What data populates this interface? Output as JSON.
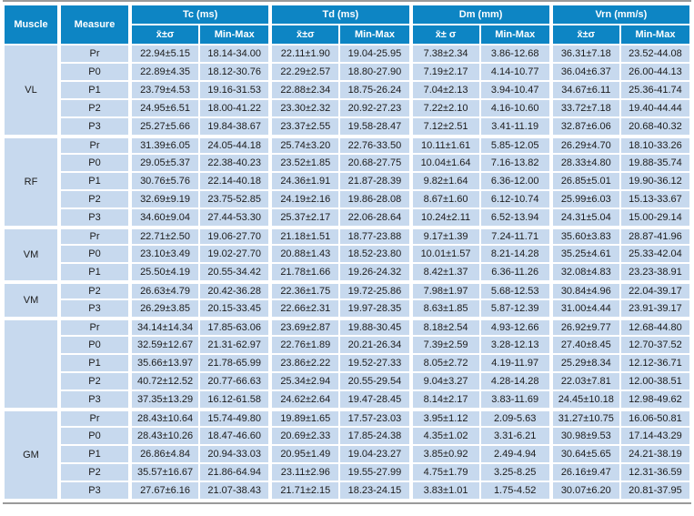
{
  "colors": {
    "header_bg": "#0d85c4",
    "header_text": "#ffffff",
    "cell_bg": "#c7d9ee",
    "cell_text": "#1b1b1b",
    "gutter": "#ffffff",
    "frame_line": "#9a9a9a"
  },
  "table": {
    "header": {
      "muscle": "Muscle",
      "measure": "Measure",
      "param_groups": [
        {
          "label": "Tc (ms)",
          "mean": "x̄±σ",
          "range": "Min-Max"
        },
        {
          "label": "Td (ms)",
          "mean": "x̄±σ",
          "range": "Min-Max"
        },
        {
          "label": "Dm (mm)",
          "mean": "x̄± σ",
          "range": "Min-Max"
        },
        {
          "label": "Vrn (mm/s)",
          "mean": "x̄±σ",
          "range": "Min-Max"
        }
      ]
    },
    "muscle_groups": [
      {
        "muscle": "VL",
        "rows": [
          {
            "measure": "Pr",
            "values": [
              "22.94±5.15",
              "18.14-34.00",
              "22.11±1.90",
              "19.04-25.95",
              "7.38±2.34",
              "3.86-12.68",
              "36.31±7.18",
              "23.52-44.08"
            ]
          },
          {
            "measure": "P0",
            "values": [
              "22.89±4.35",
              "18.12-30.76",
              "22.29±2.57",
              "18.80-27.90",
              "7.19±2.17",
              "4.14-10.77",
              "36.04±6.37",
              "26.00-44.13"
            ]
          },
          {
            "measure": "P1",
            "values": [
              "23.79±4.53",
              "19.16-31.53",
              "22.88±2.34",
              "18.75-26.24",
              "7.04±2.13",
              "3.94-10.47",
              "34.67±6.11",
              "25.36-41.74"
            ]
          },
          {
            "measure": "P2",
            "values": [
              "24.95±6.51",
              "18.00-41.22",
              "23.30±2.32",
              "20.92-27.23",
              "7.22±2.10",
              "4.16-10.60",
              "33.72±7.18",
              "19.40-44.44"
            ]
          },
          {
            "measure": "P3",
            "values": [
              "25.27±5.66",
              "19.84-38.67",
              "23.37±2.55",
              "19.58-28.47",
              "7.12±2.51",
              "3.41-11.19",
              "32.87±6.06",
              "20.68-40.32"
            ]
          }
        ]
      },
      {
        "muscle": "RF",
        "rows": [
          {
            "measure": "Pr",
            "values": [
              "31.39±6.05",
              "24.05-44.18",
              "25.74±3.20",
              "22.76-33.50",
              "10.11±1.61",
              "5.85-12.05",
              "26.29±4.70",
              "18.10-33.26"
            ]
          },
          {
            "measure": "P0",
            "values": [
              "29.05±5.37",
              "22.38-40.23",
              "23.52±1.85",
              "20.68-27.75",
              "10.04±1.64",
              "7.16-13.82",
              "28.33±4.80",
              "19.88-35.74"
            ]
          },
          {
            "measure": "P1",
            "values": [
              "30.76±5.76",
              "22.14-40.18",
              "24.36±1.91",
              "21.87-28.39",
              "9.82±1.64",
              "6.36-12.00",
              "26.85±5.01",
              "19.90-36.12"
            ]
          },
          {
            "measure": "P2",
            "values": [
              "32.69±9.19",
              "23.75-52.85",
              "24.19±2.16",
              "19.86-28.08",
              "8.67±1.60",
              "6.12-10.74",
              "25.99±6.03",
              "15.13-33.67"
            ]
          },
          {
            "measure": "P3",
            "values": [
              "34.60±9.04",
              "27.44-53.30",
              "25.37±2.17",
              "22.06-28.64",
              "10.24±2.11",
              "6.52-13.94",
              "24.31±5.04",
              "15.00-29.14"
            ]
          }
        ]
      },
      {
        "muscle": "VM",
        "rows": [
          {
            "measure": "Pr",
            "values": [
              "22.71±2.50",
              "19.06-27.70",
              "21.18±1.51",
              "18.77-23.88",
              "9.17±1.39",
              "7.24-11.71",
              "35.60±3.83",
              "28.87-41.96"
            ]
          },
          {
            "measure": "P0",
            "values": [
              "23.10±3.49",
              "19.02-27.70",
              "20.88±1.43",
              "18.52-23.80",
              "10.01±1.57",
              "8.21-14.28",
              "35.25±4.61",
              "25.33-42.04"
            ]
          },
          {
            "measure": "P1",
            "values": [
              "25.50±4.19",
              "20.55-34.42",
              "21.78±1.66",
              "19.26-24.32",
              "8.42±1.37",
              "6.36-11.26",
              "32.08±4.83",
              "23.23-38.91"
            ]
          }
        ]
      },
      {
        "muscle": "VM",
        "rows": [
          {
            "measure": "P2",
            "values": [
              "26.63±4.79",
              "20.42-36.28",
              "22.36±1.75",
              "19.72-25.86",
              "7.98±1.97",
              "5.68-12.53",
              "30.84±4.96",
              "22.04-39.17"
            ]
          },
          {
            "measure": "P3",
            "values": [
              "26.29±3.85",
              "20.15-33.45",
              "22.66±2.31",
              "19.97-28.35",
              "8.63±1.85",
              "5.87-12.39",
              "31.00±4.44",
              "23.91-39.17"
            ]
          }
        ]
      },
      {
        "muscle": "",
        "rows": [
          {
            "measure": "Pr",
            "values": [
              "34.14±14.34",
              "17.85-63.06",
              "23.69±2.87",
              "19.88-30.45",
              "8.18±2.54",
              "4.93-12.66",
              "26.92±9.77",
              "12.68-44.80"
            ]
          },
          {
            "measure": "P0",
            "values": [
              "32.59±12.67",
              "21.31-62.97",
              "22.76±1.89",
              "20.21-26.34",
              "7.39±2.59",
              "3.28-12.13",
              "27.40±8.45",
              "12.70-37.52"
            ]
          },
          {
            "measure": "P1",
            "values": [
              "35.66±13.97",
              "21.78-65.99",
              "23.86±2.22",
              "19.52-27.33",
              "8.05±2.72",
              "4.19-11.97",
              "25.29±8.34",
              "12.12-36.71"
            ]
          },
          {
            "measure": "P2",
            "values": [
              "40.72±12.52",
              "20.77-66.63",
              "25.34±2.94",
              "20.55-29.54",
              "9.04±3.27",
              "4.28-14.28",
              "22.03±7.81",
              "12.00-38.51"
            ]
          },
          {
            "measure": "P3",
            "values": [
              "37.35±13.29",
              "16.12-61.58",
              "24.62±2.64",
              "19.47-28.45",
              "8.14±2.17",
              "3.83-11.69",
              "24.45±10.18",
              "12.98-49.62"
            ]
          }
        ]
      },
      {
        "muscle": "GM",
        "rows": [
          {
            "measure": "Pr",
            "values": [
              "28.43±10.64",
              "15.74-49.80",
              "19.89±1.65",
              "17.57-23.03",
              "3.95±1.12",
              "2.09-5.63",
              "31.27±10.75",
              "16.06-50.81"
            ]
          },
          {
            "measure": "P0",
            "values": [
              "28.43±10.26",
              "18.47-46.60",
              "20.69±2.33",
              "17.85-24.38",
              "4.35±1.02",
              "3.31-6.21",
              "30.98±9.53",
              "17.14-43.29"
            ]
          },
          {
            "measure": "P1",
            "values": [
              "26.86±4.84",
              "20.94-33.03",
              "20.95±1.49",
              "19.04-23.27",
              "3.85±0.92",
              "2.49-4.94",
              "30.64±5.65",
              "24.21-38.19"
            ]
          },
          {
            "measure": "P2",
            "values": [
              "35.57±16.67",
              "21.86-64.94",
              "23.11±2.96",
              "19.55-27.99",
              "4.75±1.79",
              "3.25-8.25",
              "26.16±9.47",
              "12.31-36.59"
            ]
          },
          {
            "measure": "P3",
            "values": [
              "27.67±6.16",
              "21.07-38.43",
              "21.71±2.15",
              "18.23-24.15",
              "3.83±1.01",
              "1.75-4.52",
              "30.07±6.20",
              "20.81-37.95"
            ]
          }
        ]
      }
    ]
  }
}
